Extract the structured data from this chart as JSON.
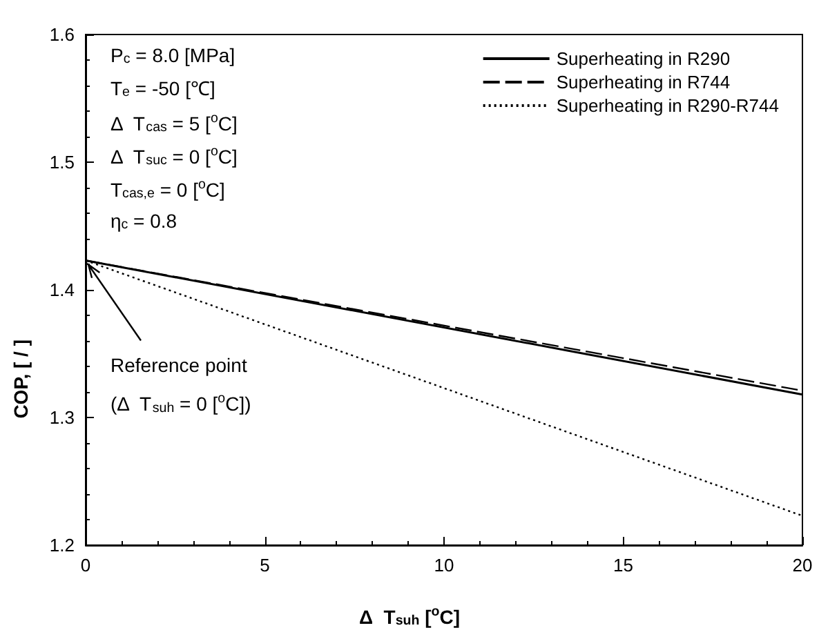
{
  "chart_data": {
    "type": "line",
    "xlabel": "Δ  T$_{suh}$ [$^{o}$C]",
    "ylabel": "COP, [ / ]",
    "xlim": [
      0,
      20
    ],
    "xticks": [
      0,
      5,
      10,
      15,
      20
    ],
    "ylim": [
      1.2,
      1.6
    ],
    "yticks": [
      1.2,
      1.3,
      1.4,
      1.5,
      1.6
    ],
    "grid": false,
    "legend": "top right",
    "marker": "none",
    "x": [
      0,
      20
    ],
    "series": [
      {
        "name": "Superheating in R290",
        "color": "#000000",
        "line_style": "solid",
        "values": [
          1.423,
          1.318
        ]
      },
      {
        "name": "Superheating in R744",
        "color": "#000000",
        "line_style": "dashed",
        "values": [
          1.423,
          1.321
        ]
      },
      {
        "name": "Superheating in R290-R744",
        "color": "#000000",
        "line_style": "dotted",
        "values": [
          1.423,
          1.223
        ]
      }
    ],
    "annotations": [
      "P$_{c}$ = 8.0 [MPa]",
      "T$_{e}$ = -50 [℃]",
      "Δ  T$_{cas}$ = 5 [$^{o}$C]",
      "Δ  T$_{suc}$ = 0 [$^{o}$C]",
      "T$_{cas,e}$ = 0 [$^{o}$C]",
      "η$_{c}$ = 0.8",
      {
        "text": "Reference point\n(Δ  T$_{suh}$ = 0 [$^{o}$C])",
        "x": 0,
        "y": 1.423
      }
    ]
  }
}
